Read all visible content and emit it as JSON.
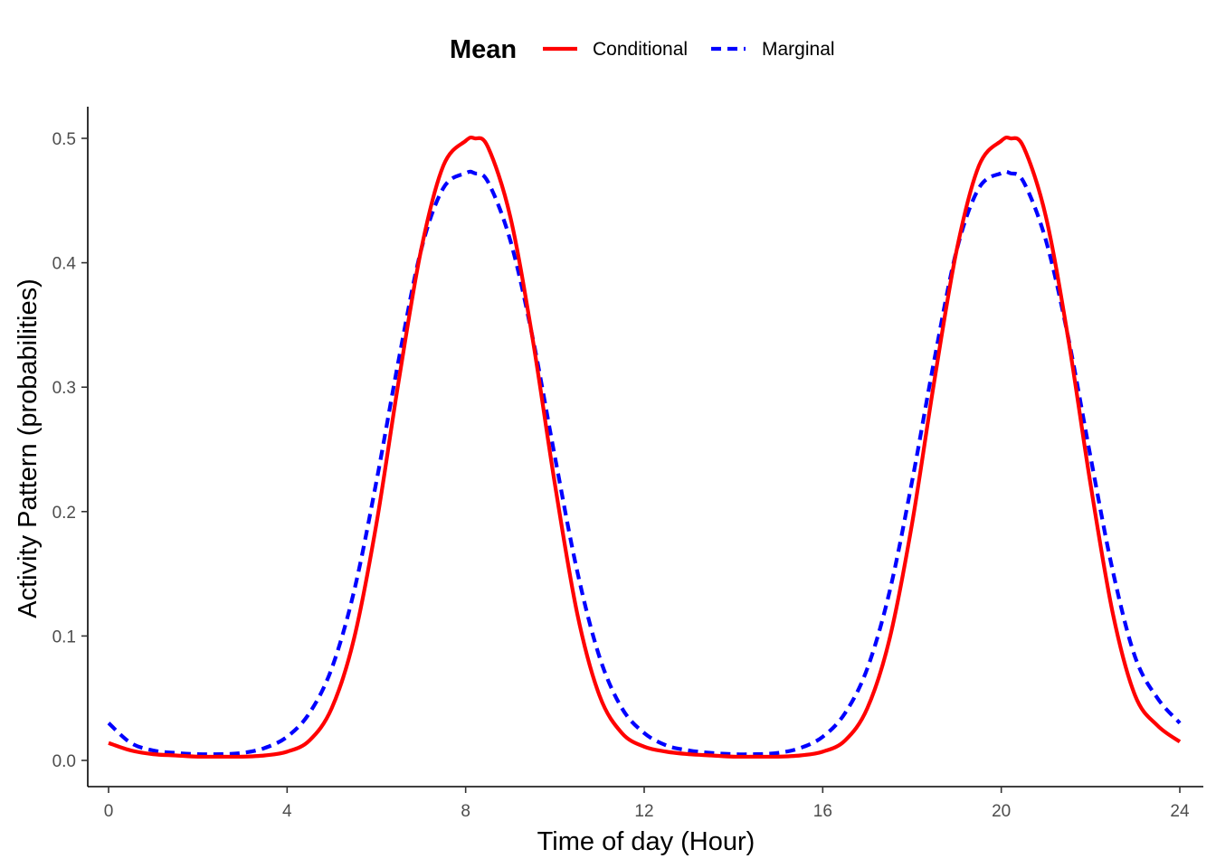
{
  "chart_data": {
    "type": "line",
    "title": "",
    "xlabel": "Time of day (Hour)",
    "ylabel": "Activity Pattern (probabilities)",
    "xlim": [
      0,
      24
    ],
    "ylim": [
      0,
      0.5
    ],
    "xticks": [
      0,
      4,
      8,
      12,
      16,
      20,
      24
    ],
    "yticks": [
      0.0,
      0.1,
      0.2,
      0.3,
      0.4,
      0.5
    ],
    "ytick_labels": [
      "0.0",
      "0.1",
      "0.2",
      "0.3",
      "0.4",
      "0.5"
    ],
    "grid": false,
    "legend": {
      "title": "Mean",
      "position": "top"
    },
    "x": [
      0,
      0.5,
      1,
      1.5,
      2,
      2.5,
      3,
      3.5,
      4,
      4.5,
      5,
      5.5,
      6,
      6.5,
      7,
      7.5,
      8,
      8.2,
      8.5,
      9,
      9.5,
      10,
      10.5,
      11,
      11.5,
      12,
      12.5,
      13,
      13.5,
      14,
      14.5,
      15,
      15.5,
      16,
      16.5,
      17,
      17.5,
      18,
      18.5,
      19,
      19.5,
      20,
      20.2,
      20.5,
      21,
      21.5,
      22,
      22.5,
      23,
      23.5,
      24
    ],
    "series": [
      {
        "name": "Conditional",
        "color": "#ff0000",
        "dash": "solid",
        "values": [
          0.014,
          0.008,
          0.005,
          0.004,
          0.003,
          0.003,
          0.003,
          0.004,
          0.007,
          0.016,
          0.042,
          0.098,
          0.19,
          0.305,
          0.41,
          0.478,
          0.498,
          0.5,
          0.493,
          0.437,
          0.339,
          0.222,
          0.118,
          0.052,
          0.022,
          0.011,
          0.007,
          0.005,
          0.004,
          0.003,
          0.003,
          0.003,
          0.004,
          0.007,
          0.016,
          0.042,
          0.098,
          0.19,
          0.305,
          0.41,
          0.478,
          0.498,
          0.5,
          0.493,
          0.437,
          0.339,
          0.222,
          0.118,
          0.052,
          0.028,
          0.015
        ]
      },
      {
        "name": "Marginal",
        "color": "#0000ff",
        "dash": "dashed",
        "values": [
          0.03,
          0.014,
          0.008,
          0.006,
          0.005,
          0.005,
          0.006,
          0.01,
          0.019,
          0.038,
          0.074,
          0.136,
          0.224,
          0.322,
          0.41,
          0.46,
          0.472,
          0.472,
          0.465,
          0.418,
          0.34,
          0.244,
          0.152,
          0.083,
          0.042,
          0.022,
          0.012,
          0.008,
          0.006,
          0.005,
          0.005,
          0.006,
          0.01,
          0.019,
          0.038,
          0.074,
          0.136,
          0.224,
          0.322,
          0.41,
          0.46,
          0.472,
          0.472,
          0.465,
          0.418,
          0.34,
          0.244,
          0.152,
          0.083,
          0.05,
          0.03
        ]
      }
    ]
  }
}
